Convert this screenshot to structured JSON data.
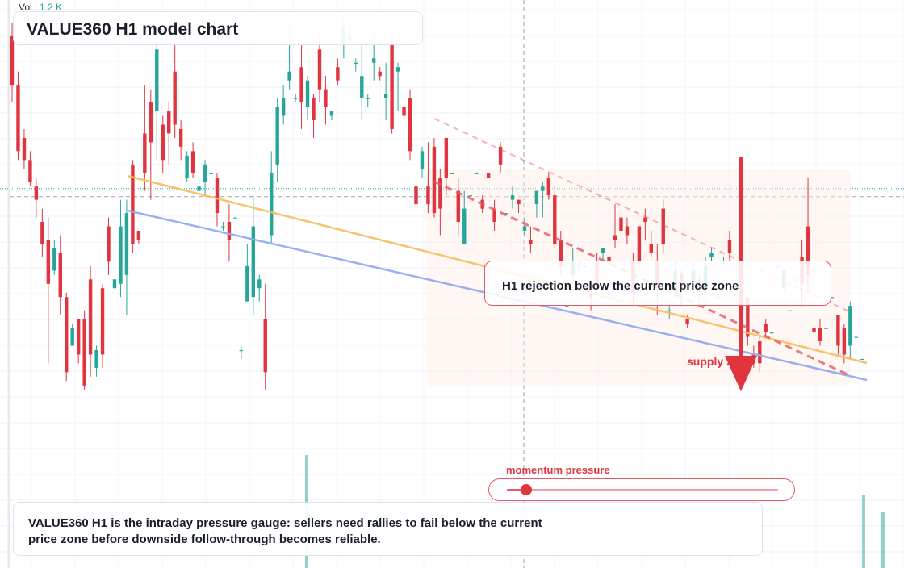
{
  "volume": {
    "label": "Vol",
    "value": "1.2 K"
  },
  "title": "VALUE360 H1 model chart",
  "callout": {
    "text": "H1 rejection below the current price zone"
  },
  "zone_label": "supply zone",
  "momentum": {
    "label": "momentum pressure",
    "level_fraction": 0.07
  },
  "note": {
    "text": "VALUE360 H1 is the intraday pressure gauge: sellers need rallies to fail below the current price zone before downside follow-through becomes reliable."
  },
  "colors": {
    "up": "#26a69a",
    "down": "#e0343f",
    "trend_orange": "#f6bd60",
    "trend_blue": "#8fa8f0",
    "accent": "#e45a66"
  },
  "chart_data": {
    "type": "candlestick",
    "timeframe": "H1",
    "y_range": [
      0,
      100
    ],
    "current_price": 57.7,
    "candles": [
      [
        94,
        83,
        97,
        79
      ],
      [
        83,
        68,
        86,
        66
      ],
      [
        71,
        66,
        73,
        64
      ],
      [
        66,
        61,
        68,
        60
      ],
      [
        60,
        57,
        62,
        53
      ],
      [
        52,
        47,
        55,
        44
      ],
      [
        48,
        38,
        53,
        20
      ],
      [
        41,
        46,
        48,
        40
      ],
      [
        45,
        35,
        49,
        31
      ],
      [
        35,
        18,
        36,
        16
      ],
      [
        24,
        28,
        29,
        26
      ],
      [
        30,
        22,
        30,
        20
      ],
      [
        30,
        15,
        32,
        14
      ],
      [
        39,
        22,
        42,
        17
      ],
      [
        19,
        23,
        24,
        17
      ],
      [
        37,
        22,
        38,
        19
      ],
      [
        51,
        43,
        53,
        40
      ],
      [
        37,
        39,
        39,
        37
      ],
      [
        38,
        51,
        57,
        35
      ],
      [
        40,
        54,
        57,
        31
      ],
      [
        65,
        47,
        66,
        45
      ],
      [
        50,
        48,
        50,
        47
      ],
      [
        72,
        63,
        83,
        59
      ],
      [
        79,
        70,
        82,
        57
      ],
      [
        77,
        91,
        92,
        66
      ],
      [
        74,
        66,
        76,
        63
      ],
      [
        77,
        72,
        79,
        65
      ],
      [
        86,
        74,
        92,
        71
      ],
      [
        73,
        69,
        75,
        66
      ],
      [
        62,
        67,
        68,
        61
      ],
      [
        68,
        63,
        70,
        62
      ],
      [
        59,
        60,
        62,
        51
      ],
      [
        61,
        65,
        66,
        58
      ],
      [
        63,
        63,
        64,
        62
      ],
      [
        62,
        54,
        63,
        51
      ],
      [
        51,
        51,
        52,
        50
      ],
      [
        52,
        48,
        56,
        43
      ],
      [
        53,
        53,
        53,
        53
      ],
      [
        23,
        23,
        24,
        21
      ],
      [
        34,
        42,
        47,
        36
      ],
      [
        35,
        51,
        58,
        31
      ],
      [
        37,
        39,
        40,
        34
      ],
      [
        30,
        18,
        38,
        14
      ],
      [
        49,
        63,
        68,
        47
      ],
      [
        65,
        78,
        80,
        61
      ],
      [
        76,
        80,
        83,
        74
      ],
      [
        84,
        86,
        96,
        82
      ],
      [
        80,
        80,
        81,
        79
      ],
      [
        87,
        79,
        92,
        73
      ],
      [
        78,
        84,
        85,
        75
      ],
      [
        80,
        75,
        81,
        71
      ],
      [
        91,
        82,
        95,
        79
      ],
      [
        82,
        78,
        85,
        74
      ],
      [
        76,
        77,
        77,
        75
      ],
      [
        87,
        84,
        89,
        83
      ],
      [
        92,
        96,
        98,
        89
      ],
      [
        93,
        94,
        97,
        92
      ],
      [
        88,
        88,
        89,
        86
      ],
      [
        80,
        85,
        92,
        75
      ],
      [
        80,
        80,
        81,
        78
      ],
      [
        88,
        89,
        95,
        84
      ],
      [
        86,
        85,
        87,
        84
      ],
      [
        80,
        81,
        88,
        75
      ],
      [
        92,
        73,
        93,
        72
      ],
      [
        86,
        87,
        88,
        77
      ],
      [
        78,
        76,
        79,
        73
      ],
      [
        80,
        68,
        82,
        66
      ],
      [
        60,
        56,
        61,
        49
      ],
      [
        64,
        68,
        69,
        62
      ],
      [
        60,
        56,
        70,
        54
      ],
      [
        69,
        54,
        71,
        53
      ],
      [
        62,
        55,
        64,
        49
      ],
      [
        71,
        62,
        71,
        58
      ],
      [
        63,
        63,
        63,
        63
      ],
      [
        59,
        52,
        62,
        49
      ],
      [
        47,
        55,
        59,
        47
      ],
      [
        58,
        58,
        58,
        58
      ],
      [
        63,
        63,
        63,
        63
      ],
      [
        57,
        55,
        58,
        54
      ],
      [
        63,
        62,
        63,
        62
      ],
      [
        55,
        52,
        57,
        50
      ],
      [
        69,
        65,
        70,
        63
      ],
      [
        54,
        54,
        54,
        54
      ],
      [
        57,
        58,
        60,
        55
      ],
      [
        57,
        56,
        56,
        54
      ],
      [
        50,
        51,
        53,
        49
      ],
      [
        48,
        47,
        51,
        45
      ],
      [
        56,
        59,
        59,
        53
      ],
      [
        59,
        60,
        61,
        53
      ],
      [
        62,
        58,
        63,
        57
      ],
      [
        58,
        47,
        60,
        46
      ],
      [
        48,
        42,
        50,
        40
      ],
      [
        33,
        33,
        33,
        33
      ],
      [
        40,
        43,
        46,
        39
      ],
      [
        42,
        42,
        43,
        41
      ],
      [
        42,
        42,
        42,
        42
      ],
      [
        38,
        35,
        39,
        32
      ],
      [
        43,
        38,
        45,
        37
      ],
      [
        45,
        46,
        46,
        43
      ],
      [
        44,
        43,
        45,
        41
      ],
      [
        49,
        48,
        56,
        46
      ],
      [
        53,
        50,
        55,
        47
      ],
      [
        51,
        49,
        53,
        47
      ],
      [
        43,
        36,
        45,
        33
      ],
      [
        51,
        43,
        51,
        42
      ],
      [
        53,
        52,
        55,
        48
      ],
      [
        47,
        45,
        50,
        44
      ],
      [
        43,
        37,
        47,
        31
      ],
      [
        55,
        47,
        57,
        45
      ],
      [
        32,
        32,
        33,
        30
      ],
      [
        36,
        41,
        43,
        35
      ],
      [
        40,
        37,
        41,
        33
      ],
      [
        30,
        29,
        31,
        28
      ],
      [
        38,
        41,
        43,
        36
      ],
      [
        37,
        39,
        40,
        34
      ],
      [
        37,
        42,
        44,
        33
      ],
      [
        44,
        45,
        46,
        43
      ],
      [
        35,
        35,
        35,
        35
      ],
      [
        43,
        43,
        44,
        42
      ],
      [
        48,
        45,
        50,
        43
      ],
      [
        38,
        38,
        38,
        38
      ],
      [
        40,
        31,
        40,
        30
      ],
      [
        35,
        26,
        35,
        24
      ],
      [
        22,
        20,
        24,
        19
      ],
      [
        25,
        20,
        26,
        18
      ],
      [
        29,
        27,
        30,
        26
      ],
      [
        27,
        27,
        27,
        27
      ],
      [
        42,
        42,
        42,
        42
      ],
      [
        37,
        41,
        41,
        36
      ],
      [
        32,
        32,
        32,
        32
      ],
      [
        39,
        39,
        39,
        39
      ],
      [
        44,
        38,
        48,
        33
      ],
      [
        51,
        40,
        62,
        36
      ],
      [
        28,
        27,
        31,
        26
      ],
      [
        28,
        25,
        30,
        24
      ],
      [
        28,
        28,
        28,
        28
      ],
      [
        35,
        35,
        35,
        35
      ],
      [
        31,
        24,
        31,
        22
      ],
      [
        28,
        22,
        29,
        20
      ],
      [
        24,
        33,
        34,
        21
      ],
      [
        26,
        26,
        26,
        26
      ],
      [
        21,
        21,
        21,
        21
      ]
    ]
  }
}
